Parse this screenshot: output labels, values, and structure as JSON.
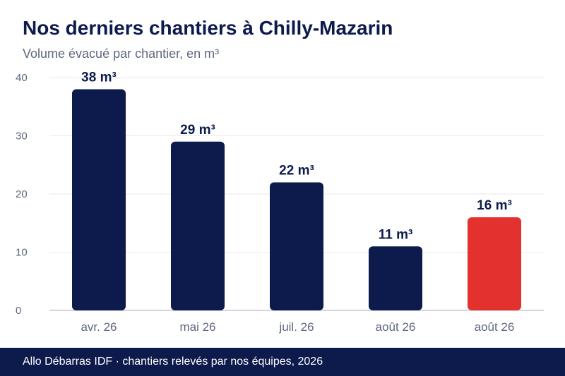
{
  "header": {
    "title": "Nos derniers chantiers à Chilly-Mazarin",
    "subtitle": "Volume évacué par chantier, en m³"
  },
  "footer": {
    "text": "Allo Débarras IDF · chantiers relevés par nos équipes, 2026"
  },
  "colors": {
    "bar": "#0d1b4c",
    "highlight": "#e3312d",
    "grid": "#e9e9ef",
    "axis": "#c8c8d8"
  },
  "chart_data": {
    "type": "bar",
    "title": "Nos derniers chantiers à Chilly-Mazarin",
    "subtitle": "Volume évacué par chantier, en m³",
    "xlabel": "",
    "ylabel": "",
    "categories": [
      "avr. 26",
      "mai 26",
      "juil. 26",
      "août 26",
      "août 26"
    ],
    "values": [
      38,
      29,
      22,
      11,
      16
    ],
    "data_labels": [
      "38 m³",
      "29 m³",
      "22 m³",
      "11 m³",
      "16 m³"
    ],
    "highlight_index": 4,
    "ylim": [
      0,
      40
    ],
    "yticks": [
      0,
      10,
      20,
      30,
      40
    ],
    "grid": true,
    "legend": "none"
  }
}
